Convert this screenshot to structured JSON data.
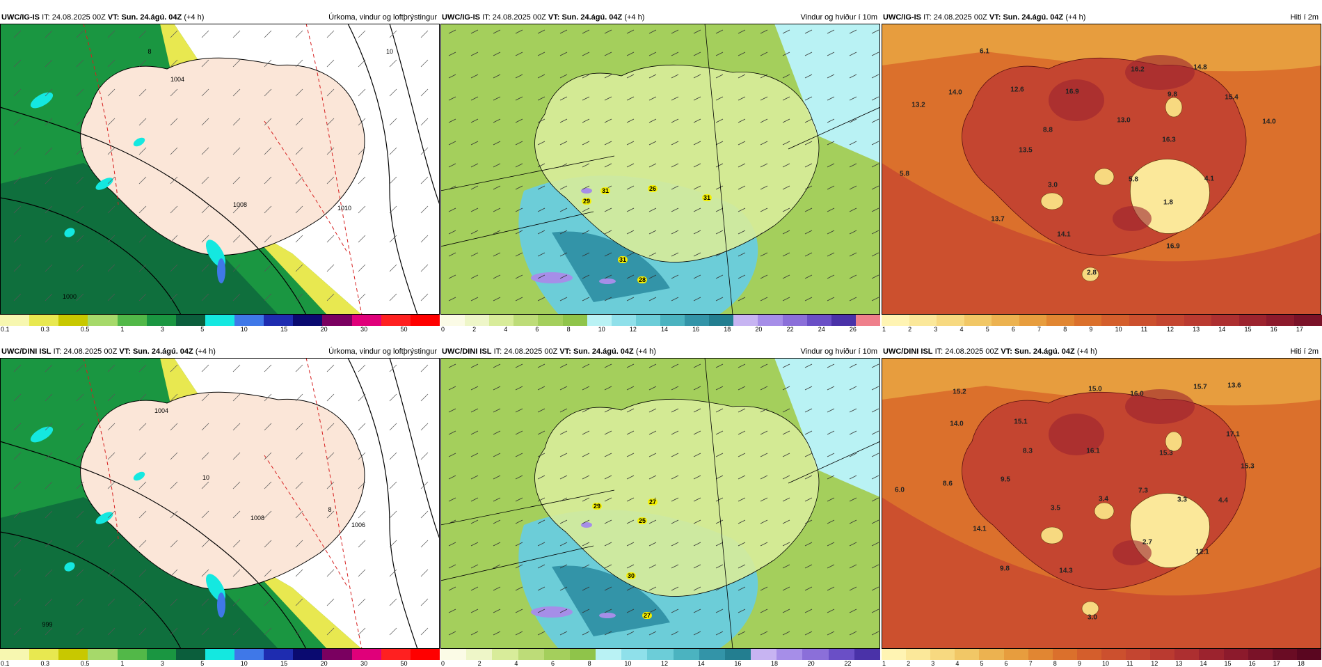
{
  "panels": [
    {
      "model": "UWC/IG-IS",
      "it_label": "IT:",
      "it": "24.08.2025 00Z",
      "vt_label": "VT:",
      "vt": "Sun. 24.ágú. 04Z",
      "lead": "(+4 h)",
      "title": "Úrkoma, vindur og loftþrýstingur",
      "kind": "precip",
      "scale": "precip"
    },
    {
      "model": "UWC/IG-IS",
      "it_label": "IT:",
      "it": "24.08.2025 00Z",
      "vt_label": "VT:",
      "vt": "Sun. 24.ágú. 04Z",
      "lead": "(+4 h)",
      "title": "Vindur og hviður í 10m",
      "kind": "wind",
      "scale": "wind1"
    },
    {
      "model": "UWC/IG-IS",
      "it_label": "IT:",
      "it": "24.08.2025 00Z",
      "vt_label": "VT:",
      "vt": "Sun. 24.ágú. 04Z",
      "lead": "(+4 h)",
      "title": "Hiti í 2m",
      "kind": "temp",
      "scale": "temp1"
    },
    {
      "model": "UWC/DINI ISL",
      "it_label": "IT:",
      "it": "24.08.2025 00Z",
      "vt_label": "VT:",
      "vt": "Sun. 24.ágú. 04Z",
      "lead": "(+4 h)",
      "title": "Úrkoma, vindur og loftþrýstingur",
      "kind": "precip",
      "scale": "precip"
    },
    {
      "model": "UWC/DINI ISL",
      "it_label": "IT:",
      "it": "24.08.2025 00Z",
      "vt_label": "VT:",
      "vt": "Sun. 24.ágú. 04Z",
      "lead": "(+4 h)",
      "title": "Vindur og hviður í 10m",
      "kind": "wind",
      "scale": "wind2"
    },
    {
      "model": "UWC/DINI ISL",
      "it_label": "IT:",
      "it": "24.08.2025 00Z",
      "vt_label": "VT:",
      "vt": "Sun. 24.ágú. 04Z",
      "lead": "(+4 h)",
      "title": "Hiti í 2m",
      "kind": "temp",
      "scale": "temp2"
    }
  ],
  "scales": {
    "precip": {
      "colors": [
        "#f7f7b0",
        "#e8e850",
        "#c8c800",
        "#a6d96a",
        "#52b848",
        "#1a9641",
        "#0b5e3c",
        "#14e8e0",
        "#3f78e8",
        "#1e2cb0",
        "#0a0a70",
        "#7a0060",
        "#e0007a",
        "#ff2020",
        "#ff0000"
      ],
      "ticks": [
        "0.1",
        "0.3",
        "0.5",
        "1",
        "3",
        "5",
        "10",
        "15",
        "20",
        "30",
        "50"
      ]
    },
    "wind1": {
      "colors": [
        "#fbfbe6",
        "#eef6c8",
        "#d8ec9a",
        "#bddc78",
        "#a4cf5c",
        "#8fc44a",
        "#b9f2f4",
        "#8fe0ea",
        "#6ccdd8",
        "#4bb3c0",
        "#3394a8",
        "#237e90",
        "#c7b4f2",
        "#a68ee8",
        "#8b6fd9",
        "#6a4fc6",
        "#4a32a8",
        "#ef7f8b"
      ],
      "ticks": [
        "0",
        "2",
        "4",
        "6",
        "8",
        "10",
        "12",
        "14",
        "16",
        "18",
        "20",
        "22",
        "24",
        "26"
      ]
    },
    "temp1": {
      "colors": [
        "#fff4b3",
        "#fbe89a",
        "#f7d980",
        "#f1c766",
        "#ecb250",
        "#e79d3e",
        "#e18632",
        "#db702c",
        "#d45e2c",
        "#cc502e",
        "#c44530",
        "#ba3a30",
        "#ad2f30",
        "#9c232e",
        "#8c1a2c",
        "#7a1228"
      ],
      "ticks": [
        "1",
        "2",
        "3",
        "4",
        "5",
        "6",
        "7",
        "8",
        "9",
        "10",
        "11",
        "12",
        "13",
        "14",
        "15",
        "16",
        "17"
      ]
    },
    "wind2": {
      "colors": [
        "#fbfbe6",
        "#eef6c8",
        "#d8ec9a",
        "#bddc78",
        "#a4cf5c",
        "#8fc44a",
        "#b9f2f4",
        "#8fe0ea",
        "#6ccdd8",
        "#4bb3c0",
        "#3394a8",
        "#237e90",
        "#c7b4f2",
        "#a68ee8",
        "#8b6fd9",
        "#6a4fc6",
        "#4a32a8"
      ],
      "ticks": [
        "0",
        "2",
        "4",
        "6",
        "8",
        "10",
        "12",
        "14",
        "16",
        "18",
        "20",
        "22"
      ]
    },
    "temp2": {
      "colors": [
        "#fff4b3",
        "#fbe89a",
        "#f7d980",
        "#f1c766",
        "#ecb250",
        "#e79d3e",
        "#e18632",
        "#db702c",
        "#d45e2c",
        "#cc502e",
        "#c44530",
        "#ba3a30",
        "#ad2f30",
        "#9c232e",
        "#8c1a2c",
        "#7a1228",
        "#6a0c24",
        "#5a0620"
      ],
      "ticks": [
        "1",
        "2",
        "3",
        "4",
        "5",
        "6",
        "7",
        "8",
        "9",
        "10",
        "11",
        "12",
        "13",
        "14",
        "15",
        "16",
        "17",
        "18"
      ]
    }
  },
  "labels": {
    "p0_pressure": [
      "1000",
      "1004",
      "1008",
      "1010",
      "10",
      "8"
    ],
    "p3_pressure": [
      "999",
      "1004",
      "1008",
      "1006",
      "10",
      "8"
    ],
    "p1_gusts": [
      "29",
      "31",
      "26",
      "31",
      "31",
      "28"
    ],
    "p4_gusts": [
      "29",
      "27",
      "25",
      "30",
      "27"
    ],
    "p2_temps": [
      "6.1",
      "14.0",
      "13.2",
      "12.6",
      "16.9",
      "16.2",
      "9.8",
      "14.8",
      "15.4",
      "14.0",
      "8.8",
      "13.0",
      "16.3",
      "13.5",
      "5.8",
      "3.0",
      "5.8",
      "1.8",
      "4.1",
      "13.7",
      "14.1",
      "16.9",
      "2.8"
    ],
    "p5_temps": [
      "15.2",
      "14.0",
      "15.0",
      "16.0",
      "15.7",
      "13.6",
      "15.1",
      "8.3",
      "16.1",
      "15.3",
      "17.1",
      "15.3",
      "6.0",
      "8.6",
      "9.5",
      "7.3",
      "3.5",
      "3.4",
      "3.3",
      "4.4",
      "14.1",
      "2.7",
      "12.1",
      "9.8",
      "14.3",
      "3.0"
    ]
  }
}
